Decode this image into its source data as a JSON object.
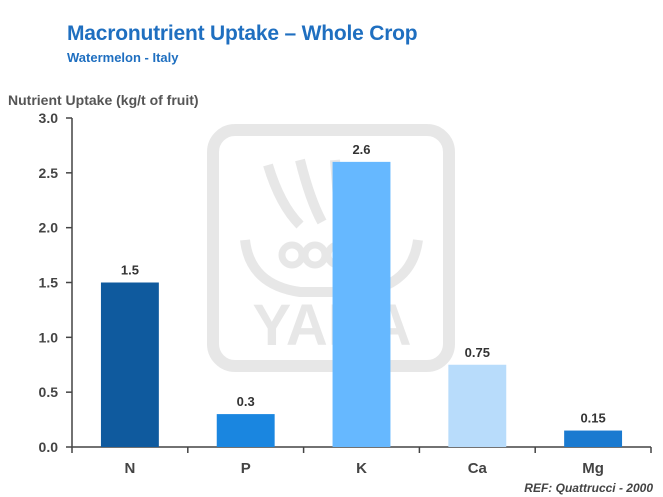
{
  "title": "Macronutrient Uptake – Whole Crop",
  "subtitle": "Watermelon  - Italy",
  "ylabel": "Nutrient Uptake (kg/t of fruit)",
  "reference": "REF: Quattrucci - 2000",
  "watermark": {
    "text": "YARA",
    "icon": "yara-viking-ship-logo",
    "color": "#bbbbbb"
  },
  "colors": {
    "axis": "#444444",
    "tick_label": "#444444",
    "data_label": "#333333",
    "bars": [
      "#0f5a9e",
      "#1a86e0",
      "#66b8ff",
      "#b8dcfb",
      "#1a7ad0"
    ]
  },
  "chart_data": {
    "type": "bar",
    "categories": [
      "N",
      "P",
      "K",
      "Ca",
      "Mg"
    ],
    "values": [
      1.5,
      0.3,
      2.6,
      0.75,
      0.15
    ],
    "value_labels": [
      "1.5",
      "0.3",
      "2.6",
      "0.75",
      "0.15"
    ],
    "title": "Macronutrient Uptake – Whole Crop",
    "subtitle": "Watermelon  - Italy",
    "xlabel": "",
    "ylabel": "Nutrient Uptake (kg/t of fruit)",
    "ylim": [
      0,
      3.0
    ],
    "yticks": [
      0,
      0.5,
      1.0,
      1.5,
      2.0,
      2.5,
      3.0
    ],
    "ytick_labels": [
      "0.0",
      "0.5",
      "1.0",
      "1.5",
      "2.0",
      "2.5",
      "3.0"
    ],
    "grid": false,
    "legend": "none"
  }
}
